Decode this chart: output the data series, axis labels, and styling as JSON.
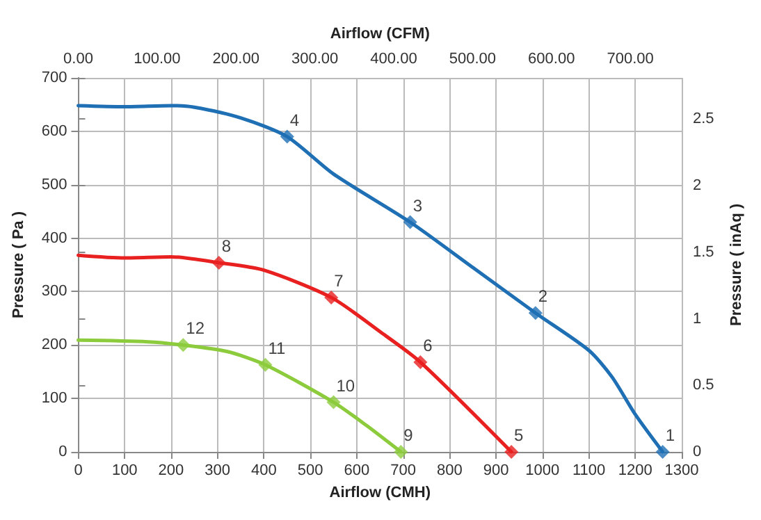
{
  "chart_data": {
    "type": "line",
    "xlabel": "Airflow (CMH)",
    "x2label": "Airflow (CFM)",
    "ylabel": "Pressure ( Pa )",
    "y2label": "Pressure ( inAq )",
    "xlim": [
      0,
      1300
    ],
    "xticks": [
      0,
      100,
      200,
      300,
      400,
      500,
      600,
      700,
      800,
      900,
      1000,
      1100,
      1200,
      1300
    ],
    "x2lim": [
      0,
      765.15
    ],
    "x2ticks": [
      {
        "value": 0,
        "label": "0.00"
      },
      {
        "value": 100,
        "label": "100.00"
      },
      {
        "value": 200,
        "label": "200.00"
      },
      {
        "value": 300,
        "label": "300.00"
      },
      {
        "value": 400,
        "label": "400.00"
      },
      {
        "value": 500,
        "label": "500.00"
      },
      {
        "value": 600,
        "label": "600.00"
      },
      {
        "value": 700,
        "label": "700.00"
      }
    ],
    "ylim": [
      0,
      700
    ],
    "yticks": [
      0,
      100,
      200,
      300,
      400,
      500,
      600,
      700
    ],
    "y2lim": [
      0,
      2.81
    ],
    "y2ticks": [
      0,
      0.5,
      1,
      1.5,
      2,
      2.5
    ],
    "grid": true,
    "marker": "none",
    "line_style": "solid",
    "series": [
      {
        "color": "#1f6fb5",
        "x": [
          0,
          100,
          200,
          250,
          350,
          450,
          550,
          715,
          850,
          985,
          1100,
          1150,
          1200,
          1259
        ],
        "values": [
          648,
          646,
          648,
          645,
          625,
          590,
          520,
          430,
          345,
          260,
          190,
          140,
          70,
          0
        ]
      },
      {
        "color": "#e8201f",
        "x": [
          0,
          100,
          200,
          303,
          400,
          545,
          650,
          737,
          933
        ],
        "values": [
          368,
          363,
          365,
          354,
          340,
          289,
          225,
          168,
          0
        ]
      },
      {
        "color": "#8ccc3c",
        "x": [
          0,
          150,
          226,
          320,
          403,
          550,
          620,
          695
        ],
        "values": [
          209,
          206,
          200,
          188,
          163,
          93,
          50,
          0
        ]
      },
      {
        "type": "scatter",
        "marker": "diamond",
        "color": "#1f6fb5",
        "x": [
          1259,
          985,
          715,
          450
        ],
        "values": [
          0,
          260,
          430,
          590
        ]
      },
      {
        "type": "scatter",
        "marker": "diamond",
        "color": "#e8201f",
        "x": [
          933,
          737,
          545,
          303
        ],
        "values": [
          0,
          168,
          289,
          354
        ]
      },
      {
        "type": "scatter",
        "marker": "diamond",
        "color": "#8ccc3c",
        "x": [
          695,
          550,
          403,
          226
        ],
        "values": [
          0,
          93,
          163,
          200
        ]
      }
    ],
    "annotations": [
      {
        "text": "1",
        "x": 1259,
        "y": 0
      },
      {
        "text": "2",
        "x": 985,
        "y": 260
      },
      {
        "text": "3",
        "x": 715,
        "y": 430
      },
      {
        "text": "4",
        "x": 450,
        "y": 590
      },
      {
        "text": "5",
        "x": 933,
        "y": 0
      },
      {
        "text": "6",
        "x": 737,
        "y": 168
      },
      {
        "text": "7",
        "x": 545,
        "y": 289
      },
      {
        "text": "8",
        "x": 303,
        "y": 354
      },
      {
        "text": "9",
        "x": 695,
        "y": 0
      },
      {
        "text": "10",
        "x": 550,
        "y": 93
      },
      {
        "text": "11",
        "x": 403,
        "y": 163
      },
      {
        "text": "12",
        "x": 226,
        "y": 200
      }
    ]
  }
}
